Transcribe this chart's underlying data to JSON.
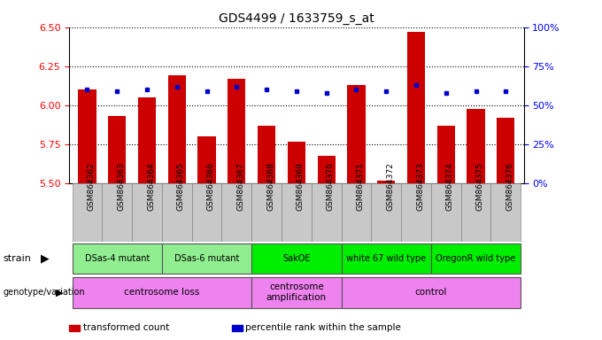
{
  "title": "GDS4499 / 1633759_s_at",
  "samples": [
    "GSM864362",
    "GSM864363",
    "GSM864364",
    "GSM864365",
    "GSM864366",
    "GSM864367",
    "GSM864368",
    "GSM864369",
    "GSM864370",
    "GSM864371",
    "GSM864372",
    "GSM864373",
    "GSM864374",
    "GSM864375",
    "GSM864376"
  ],
  "red_values": [
    6.1,
    5.93,
    6.05,
    6.19,
    5.8,
    6.17,
    5.87,
    5.77,
    5.68,
    6.13,
    5.52,
    6.47,
    5.87,
    5.98,
    5.92
  ],
  "blue_values": [
    6.1,
    6.09,
    6.1,
    6.12,
    6.09,
    6.12,
    6.1,
    6.09,
    6.08,
    6.1,
    6.09,
    6.13,
    6.08,
    6.09,
    6.09
  ],
  "ylim_left": [
    5.5,
    6.5
  ],
  "yticks_left": [
    5.5,
    5.75,
    6.0,
    6.25,
    6.5
  ],
  "yticks_right": [
    0,
    25,
    50,
    75,
    100
  ],
  "bar_color": "#cc0000",
  "dot_color": "#0000cc",
  "strain_groups": [
    {
      "label": "DSas-4 mutant",
      "start": 0,
      "end": 3,
      "color": "#90ee90"
    },
    {
      "label": "DSas-6 mutant",
      "start": 3,
      "end": 6,
      "color": "#90ee90"
    },
    {
      "label": "SakOE",
      "start": 6,
      "end": 9,
      "color": "#00ee00"
    },
    {
      "label": "white 67 wild type",
      "start": 9,
      "end": 12,
      "color": "#00ee00"
    },
    {
      "label": "OregonR wild type",
      "start": 12,
      "end": 15,
      "color": "#00ee00"
    }
  ],
  "genotype_groups": [
    {
      "label": "centrosome loss",
      "start": 0,
      "end": 6,
      "color": "#ee82ee"
    },
    {
      "label": "centrosome\namplification",
      "start": 6,
      "end": 9,
      "color": "#ee82ee"
    },
    {
      "label": "control",
      "start": 9,
      "end": 15,
      "color": "#ee82ee"
    }
  ],
  "legend_items": [
    {
      "color": "#cc0000",
      "label": "transformed count"
    },
    {
      "color": "#0000cc",
      "label": "percentile rank within the sample"
    }
  ],
  "background_color": "#ffffff",
  "bar_bottom": 5.5,
  "figsize": [
    6.8,
    3.84
  ],
  "dpi": 100,
  "sample_box_color": "#c8c8c8",
  "plot_area_color": "#ffffff"
}
